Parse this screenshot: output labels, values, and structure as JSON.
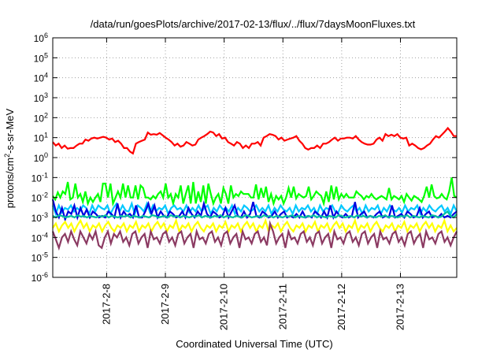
{
  "chart_data": {
    "type": "line",
    "title": "/data/run/goesPlots/archive/2017-02-13/flux/../flux/7daysMoonFluxes.txt",
    "xlabel": "Coordinated Universal Time (UTC)",
    "ylabel": "protons/cm²-s-sr-MeV",
    "ylabel_parts": {
      "base": "protons/cm",
      "sup": "2",
      "rest": "-s-sr-MeV"
    },
    "y_scale": "log",
    "ylim": [
      1e-06,
      1000000.0
    ],
    "y_ticks": [
      {
        "value": 1e-06,
        "base": "10",
        "exp": "-6"
      },
      {
        "value": 1e-05,
        "base": "10",
        "exp": "-5"
      },
      {
        "value": 0.0001,
        "base": "10",
        "exp": "-4"
      },
      {
        "value": 0.001,
        "base": "10",
        "exp": "-3"
      },
      {
        "value": 0.01,
        "base": "10",
        "exp": "-2"
      },
      {
        "value": 0.1,
        "base": "10",
        "exp": "-1"
      },
      {
        "value": 1,
        "base": "10",
        "exp": "0"
      },
      {
        "value": 10,
        "base": "10",
        "exp": "1"
      },
      {
        "value": 100,
        "base": "10",
        "exp": "2"
      },
      {
        "value": 1000.0,
        "base": "10",
        "exp": "3"
      },
      {
        "value": 10000.0,
        "base": "10",
        "exp": "4"
      },
      {
        "value": 100000.0,
        "base": "10",
        "exp": "5"
      },
      {
        "value": 1000000.0,
        "base": "10",
        "exp": "6"
      }
    ],
    "x_range": [
      "2017-02-07 02:00",
      "2017-02-13 23:00"
    ],
    "x_ticks": [
      "2017-2-8",
      "2017-2-9",
      "2017-2-10",
      "2017-2-11",
      "2017-2-12",
      "2017-2-13"
    ],
    "grid": true,
    "legend": "none",
    "series": [
      {
        "color": "#ff0000",
        "values": [
          6,
          4,
          5,
          3,
          4,
          2.8,
          3,
          3,
          4,
          5,
          5,
          8,
          7,
          9,
          10,
          9,
          10,
          11,
          10,
          8,
          9,
          6,
          7,
          5,
          3,
          3,
          2,
          1.6,
          5,
          6,
          7,
          8,
          18,
          14,
          15,
          14,
          17,
          13,
          10,
          8,
          6,
          4,
          5,
          3.5,
          4,
          6,
          5,
          4,
          4.5,
          8,
          10,
          12,
          15,
          20,
          18,
          12,
          15,
          9,
          10,
          6,
          5,
          4,
          6,
          5,
          3,
          4,
          3,
          5,
          5,
          6,
          4,
          10,
          12,
          15,
          14,
          12,
          8,
          10,
          7,
          8,
          9,
          10,
          12,
          7,
          5,
          3,
          2.5,
          3,
          3,
          4,
          3,
          5,
          5,
          6,
          8,
          10,
          7,
          9,
          9,
          10,
          10,
          9,
          12,
          8,
          6,
          5,
          4.5,
          4.5,
          5,
          8,
          10,
          7,
          15,
          12,
          14,
          12,
          15,
          10,
          9,
          10,
          4,
          5,
          4,
          3,
          2.6,
          3,
          4,
          5,
          8,
          12,
          10,
          14,
          20,
          30,
          20,
          12,
          12
        ]
      },
      {
        "color": "#00ff00",
        "values": [
          0.012,
          0.008,
          0.018,
          0.01,
          0.02,
          0.015,
          0.06,
          0.008,
          0.01,
          0.05,
          0.01,
          0.015,
          0.006,
          0.02,
          0.005,
          0.01,
          0.006,
          0.01,
          0.015,
          0.006,
          0.05,
          0.05,
          0.01,
          0.05,
          0.005,
          0.01,
          0.02,
          0.01,
          0.05,
          0.01,
          0.04,
          0.01,
          0.01,
          0.04,
          0.008,
          0.04,
          0.03,
          0.01,
          0.01,
          0.008,
          0.012,
          0.009,
          0.015,
          0.02,
          0.01,
          0.05,
          0.01,
          0.015,
          0.005,
          0.015,
          0.01,
          0.04,
          0.005,
          0.015,
          0.04,
          0.005,
          0.06,
          0.005,
          0.02,
          0.006,
          0.04,
          0.005,
          0.05,
          0.015,
          0.005,
          0.01,
          0.015,
          0.005,
          0.03,
          0.015,
          0.005,
          0.04,
          0.01,
          0.015,
          0.012,
          0.02,
          0.015,
          0.015,
          0.015,
          0.01,
          0.01,
          0.045,
          0.008,
          0.03,
          0.01,
          0.035,
          0.006,
          0.015,
          0.005,
          0.012,
          0.008,
          0.012,
          0.005,
          0.01,
          0.03,
          0.01,
          0.035,
          0.009,
          0.015,
          0.012,
          0.01,
          0.012,
          0.035,
          0.008,
          0.012,
          0.02,
          0.015,
          0.012,
          0.005,
          0.02,
          0.006,
          0.04,
          0.008,
          0.035,
          0.008,
          0.015,
          0.01,
          0.015,
          0.01,
          0.01,
          0.01,
          0.02,
          0.015,
          0.012,
          0.008,
          0.012,
          0.01,
          0.015,
          0.01,
          0.008,
          0.01,
          0.012,
          0.01,
          0.008,
          0.03,
          0.008,
          0.012,
          0.01,
          0.008,
          0.012,
          0.006,
          0.015,
          0.01,
          0.007,
          0.012,
          0.01,
          0.008,
          0.006,
          0.012,
          0.035,
          0.01,
          0.045,
          0.012,
          0.009,
          0.01,
          0.015,
          0.01,
          0.008,
          0.02,
          0.1,
          0.012,
          0.01
        ]
      },
      {
        "color": "#00c8ff",
        "values": [
          0.004,
          0.0015,
          0.004,
          0.0018,
          0.003,
          0.0025,
          0.004,
          0.002,
          0.003,
          0.0022,
          0.004,
          0.003,
          0.0015,
          0.004,
          0.002,
          0.004,
          0.003,
          0.0025,
          0.004,
          0.0015,
          0.003,
          0.005,
          0.002,
          0.004,
          0.0022,
          0.002,
          0.005,
          0.0015,
          0.004,
          0.003,
          0.002,
          0.005,
          0.0018,
          0.004,
          0.002,
          0.003,
          0.0025,
          0.004,
          0.0015,
          0.003,
          0.004,
          0.0025,
          0.003,
          0.002,
          0.004,
          0.0018,
          0.003,
          0.002,
          0.004,
          0.002,
          0.003,
          0.004,
          0.0015,
          0.003,
          0.002,
          0.004,
          0.0025,
          0.003,
          0.002,
          0.004,
          0.0015,
          0.003,
          0.002,
          0.004,
          0.003,
          0.002,
          0.0025,
          0.004,
          0.002,
          0.003,
          0.002,
          0.004,
          0.0015,
          0.003,
          0.002,
          0.004,
          0.0025,
          0.002,
          0.003,
          0.0015,
          0.004,
          0.002,
          0.003,
          0.0025,
          0.004,
          0.002,
          0.003,
          0.0015,
          0.004,
          0.002,
          0.003,
          0.0025,
          0.004,
          0.002,
          0.0018,
          0.004,
          0.0025,
          0.002,
          0.003,
          0.004,
          0.002,
          0.003,
          0.0015,
          0.004,
          0.002,
          0.003,
          0.0025,
          0.004,
          0.0015,
          0.003,
          0.002,
          0.004,
          0.0025,
          0.002,
          0.003,
          0.0018,
          0.004,
          0.002,
          0.003,
          0.0025,
          0.004,
          0.0015,
          0.003,
          0.002,
          0.004,
          0.0025,
          0.002,
          0.003,
          0.004,
          0.002,
          0.003,
          0.0015,
          0.004,
          0.002
        ]
      },
      {
        "color": "#0000e0",
        "values": [
          0.008,
          0.002,
          0.001,
          0.003,
          0.0008,
          0.002,
          0.0015,
          0.004,
          0.001,
          0.003,
          0.0012,
          0.0025,
          0.001,
          0.002,
          0.0015,
          0.001,
          0.0012,
          0.001,
          0.002,
          0.0015,
          0.001,
          0.005,
          0.001,
          0.002,
          0.0012,
          0.0015,
          0.001,
          0.004,
          0.001,
          0.001,
          0.002,
          0.005,
          0.0015,
          0.004,
          0.001,
          0.002,
          0.0012,
          0.001,
          0.002,
          0.0015,
          0.001,
          0.0012,
          0.002,
          0.001,
          0.003,
          0.0015,
          0.001,
          0.002,
          0.0012,
          0.005,
          0.0015,
          0.001,
          0.002,
          0.0015,
          0.001,
          0.0012,
          0.003,
          0.001,
          0.002,
          0.004,
          0.0012,
          0.001,
          0.002,
          0.001,
          0.0015,
          0.006,
          0.0012,
          0.001,
          0.002,
          0.0015,
          0.001,
          0.0012,
          0.002,
          0.001,
          0.0015,
          0.002,
          0.001,
          0.0012,
          0.001,
          0.0015,
          0.001,
          0.002,
          0.001,
          0.0012,
          0.001,
          0.002,
          0.0015,
          0.001,
          0.002,
          0.001,
          0.004,
          0.001,
          0.002,
          0.0012,
          0.001,
          0.0015,
          0.001,
          0.0012,
          0.006,
          0.001,
          0.0015,
          0.002,
          0.001,
          0.0012,
          0.001,
          0.0015,
          0.002,
          0.001,
          0.0012,
          0.001,
          0.004,
          0.001,
          0.0012,
          0.0015,
          0.001,
          0.002,
          0.0015,
          0.001,
          0.0012,
          0.003,
          0.001,
          0.0015,
          0.002,
          0.001,
          0.0012,
          0.001,
          0.0015,
          0.001,
          0.0012,
          0.001,
          0.0015,
          0.002
        ]
      },
      {
        "color": "#00c0a0",
        "values": [
          0.0012,
          0.001,
          0.0013,
          0.0012,
          0.001,
          0.0011,
          0.0012,
          0.001,
          0.0013,
          0.0011,
          0.0012,
          0.001,
          0.0012,
          0.0011,
          0.001,
          0.0012,
          0.0011,
          0.0013,
          0.001,
          0.0012,
          0.0011,
          0.001,
          0.0012,
          0.0011,
          0.0013,
          0.001,
          0.0012,
          0.0011,
          0.001,
          0.0012,
          0.0011,
          0.001,
          0.0013,
          0.0012,
          0.001,
          0.0011,
          0.0012,
          0.001,
          0.0013,
          0.0011,
          0.0012,
          0.001,
          0.0012,
          0.0011,
          0.001,
          0.0012,
          0.0011,
          0.0013,
          0.001,
          0.0012,
          0.0011,
          0.001,
          0.0012,
          0.0011,
          0.0013,
          0.001,
          0.0012,
          0.0011,
          0.001,
          0.0012,
          0.0011,
          0.001,
          0.0013,
          0.0012,
          0.001,
          0.0011,
          0.0012,
          0.001,
          0.0013,
          0.0011,
          0.0012,
          0.001,
          0.0012,
          0.0011,
          0.001,
          0.0012,
          0.0011,
          0.0013,
          0.001,
          0.0012,
          0.0011,
          0.001,
          0.0012,
          0.0011,
          0.0013,
          0.001,
          0.0012,
          0.0011,
          0.001,
          0.0012,
          0.0011,
          0.001,
          0.0013,
          0.0012,
          0.001,
          0.0011,
          0.0012,
          0.001,
          0.0013,
          0.0011,
          0.0012,
          0.001,
          0.0012,
          0.0011,
          0.001,
          0.0012,
          0.0011,
          0.0013,
          0.001,
          0.0012,
          0.0011,
          0.001,
          0.0012,
          0.0011,
          0.0013,
          0.001,
          0.0012,
          0.0011,
          0.001,
          0.0012,
          0.0011,
          0.001,
          0.0013,
          0.0012,
          0.001,
          0.0011,
          0.0015,
          0.002,
          0.0012,
          0.001,
          0.0015
        ]
      },
      {
        "color": "#ffff00",
        "values": [
          0.0003,
          0.0005,
          0.0002,
          0.0004,
          0.0006,
          0.0003,
          0.0005,
          0.0002,
          0.0004,
          0.0007,
          0.0003,
          0.0005,
          0.0002,
          0.0004,
          0.0003,
          0.0005,
          0.0002,
          0.0004,
          0.0006,
          0.0003,
          0.0002,
          0.0004,
          0.0003,
          0.0005,
          0.0002,
          0.0004,
          0.0003,
          0.0006,
          0.0002,
          0.0004,
          0.0003,
          0.0005,
          0.0002,
          0.0004,
          0.0006,
          0.0003,
          0.0005,
          0.0002,
          0.0004,
          0.0003,
          0.0007,
          0.0002,
          0.0004,
          0.0003,
          0.0005,
          0.0002,
          0.0004,
          0.0006,
          0.0003,
          0.0002,
          0.0004,
          0.0003,
          0.0005,
          0.0002,
          0.0004,
          0.0003,
          0.0006,
          0.0002,
          0.0004,
          0.0003,
          0.0005,
          0.0002,
          0.0004,
          0.0006,
          0.0003,
          0.0005,
          0.0002,
          0.0004,
          0.0003,
          0.0007,
          0.0002,
          0.0004,
          0.0003,
          0.0005,
          0.0002,
          0.0004,
          0.0006,
          0.0003,
          0.0002,
          0.0004,
          0.0003,
          0.0005,
          0.0002,
          0.0004,
          0.0003,
          0.0006,
          0.0002,
          0.0004,
          0.0003,
          0.0005,
          0.0002,
          0.0004,
          0.0006,
          0.0003,
          0.0005,
          0.0002,
          0.0004,
          0.0003,
          0.0007,
          0.0002,
          0.0004,
          0.0003,
          0.0005,
          0.0002,
          0.0004,
          0.0006,
          0.0003,
          0.0002,
          0.0004,
          0.0003,
          0.0005,
          0.0002,
          0.0004,
          0.0003,
          0.0006,
          0.0002,
          0.0004,
          0.0003,
          0.0005,
          0.0002,
          0.0004,
          0.0006,
          0.0003,
          0.0005,
          0.0002,
          0.0004,
          0.0003,
          0.0007,
          0.0002,
          0.0004,
          0.0002,
          0.0003
        ]
      },
      {
        "color": "#8b3a62",
        "values": [
          0.0002,
          8e-05,
          3e-05,
          0.0001,
          0.00015,
          6e-05,
          0.0002,
          8e-05,
          4e-05,
          0.0002,
          0.0001,
          5e-05,
          0.00015,
          8e-05,
          0.0002,
          4e-05,
          3e-05,
          0.0001,
          0.0002,
          5e-05,
          0.00015,
          0.0001,
          0.0002,
          6e-05,
          0.0001,
          4e-05,
          0.00015,
          0.0002,
          5e-05,
          0.0001,
          0.00015,
          3e-05,
          0.0002,
          8e-05,
          0.0001,
          5e-05,
          0.00015,
          0.0002,
          6e-05,
          0.0001,
          4e-05,
          0.00015,
          0.0002,
          5e-05,
          0.0001,
          0.00015,
          3e-05,
          0.0002,
          8e-05,
          0.0001,
          5e-05,
          0.00015,
          0.0002,
          6e-05,
          0.0001,
          4e-05,
          0.00015,
          0.0002,
          5e-05,
          0.0001,
          0.00015,
          3e-05,
          0.0002,
          8e-05,
          0.0001,
          5e-05,
          0.00015,
          0.0002,
          6e-05,
          0.0001,
          4e-05,
          0.0005,
          0.0002,
          5e-05,
          0.0001,
          0.00015,
          3e-05,
          0.0002,
          8e-05,
          0.0001,
          5e-05,
          0.00015,
          0.0002,
          6e-05,
          0.0001,
          4e-05,
          0.00015,
          0.0002,
          5e-05,
          0.0001,
          0.00015,
          3e-05,
          0.0002,
          8e-05,
          0.0001,
          5e-05,
          0.00015,
          0.0002,
          6e-05,
          0.0001,
          4e-05,
          0.00015,
          0.0002,
          5e-05,
          0.0001,
          0.00015,
          3e-05,
          0.0002,
          8e-05,
          0.0001,
          5e-05,
          0.00015,
          0.0002,
          6e-05,
          0.0001,
          4e-05,
          0.00015,
          0.0002,
          5e-05,
          0.0001,
          0.00015,
          3e-05,
          0.0002,
          8e-05,
          0.0001,
          5e-05,
          0.00015,
          0.0002,
          6e-05,
          0.0001,
          4e-05,
          0.0001,
          0.0002
        ]
      }
    ]
  }
}
